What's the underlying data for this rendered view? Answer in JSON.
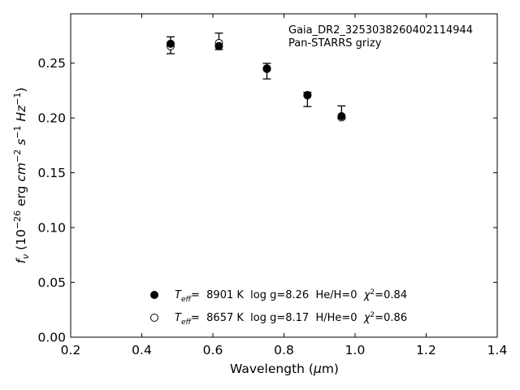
{
  "chart_data": {
    "type": "scatter",
    "title": "",
    "annotation": [
      "Gaia_DR2_3253038260402114944",
      "Pan-STARRS grizy"
    ],
    "xlabel": {
      "main": "Wavelength (",
      "greek": "μ",
      "unit": "m)"
    },
    "ylabel": {
      "prefix": "f",
      "sub": "ν",
      "rest1": " (10",
      "exp1": "−26",
      "rest2": " erg ",
      "cm": "cm",
      "exp2": "−2",
      "s": " s",
      "exp3": "−1",
      "hz": " Hz",
      "exp4": "−1",
      "close": ")"
    },
    "xlim": [
      0.2,
      1.4
    ],
    "ylim": [
      0.0,
      0.295
    ],
    "x_ticks": [
      0.2,
      0.4,
      0.6,
      0.8,
      1.0,
      1.2,
      1.4
    ],
    "x_tick_labels": [
      "0.2",
      "0.4",
      "0.6",
      "0.8",
      "1.0",
      "1.2",
      "1.4"
    ],
    "y_ticks": [
      0.0,
      0.05,
      0.1,
      0.15,
      0.2,
      0.25
    ],
    "y_tick_labels": [
      "0.00",
      "0.05",
      "0.10",
      "0.15",
      "0.20",
      "0.25"
    ],
    "grid": false,
    "legend_position": "bottom-center",
    "observed": {
      "x": [
        0.481,
        0.617,
        0.752,
        0.866,
        0.962
      ],
      "y": [
        0.2663,
        0.2699,
        0.2427,
        0.2169,
        0.2052
      ],
      "err": [
        0.0077,
        0.0075,
        0.0071,
        0.0065,
        0.0058
      ]
    },
    "series": [
      {
        "name": "Teff= 8901 K log g=8.26 He/H=0 χ2=0.84",
        "marker": "filled",
        "label_parts": {
          "T": "T",
          "sub": "eff",
          "after": "=  8901 K  log g=8.26  He/H=0  ",
          "chi": "χ",
          "sup": "2",
          "tail": "=0.84"
        },
        "x": [
          0.481,
          0.617,
          0.752,
          0.866,
          0.962
        ],
        "y": [
          0.2677,
          0.2655,
          0.2452,
          0.2209,
          0.2016
        ]
      },
      {
        "name": "Teff= 8657 K log g=8.17 H/He=0 χ2=0.86",
        "marker": "open",
        "label_parts": {
          "T": "T",
          "sub": "eff",
          "after": "=  8657 K  log g=8.17  H/He=0  ",
          "chi": "χ",
          "sup": "2",
          "tail": "=0.86"
        },
        "x": [
          0.481,
          0.617,
          0.752,
          0.866,
          0.962
        ],
        "y": [
          0.2655,
          0.2683,
          0.2447,
          0.2206,
          0.2005
        ]
      }
    ]
  }
}
